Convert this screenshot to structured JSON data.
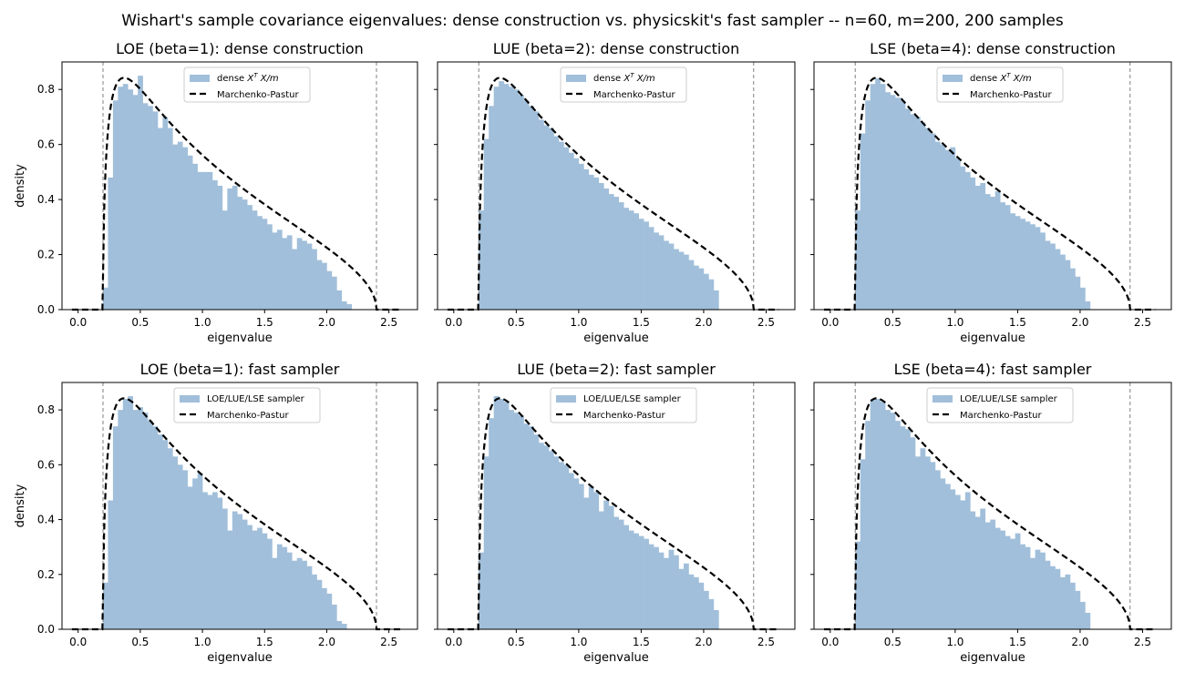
{
  "figure": {
    "suptitle": "Wishart's sample covariance eigenvalues: dense construction vs. physicskit's fast sampler -- n=60, m=200, 200 samples"
  },
  "chart_data": [
    {
      "type": "bar",
      "title": "LOE (beta=1): dense construction",
      "xlabel": "eigenvalue",
      "ylabel": "density",
      "xlim": [
        -0.13,
        2.73
      ],
      "ylim": [
        0,
        0.9
      ],
      "xticks": [
        "0.0",
        "0.5",
        "1.0",
        "1.5",
        "2.0",
        "2.5"
      ],
      "yticks": [
        "0.0",
        "0.2",
        "0.4",
        "0.6",
        "0.8"
      ],
      "legend_position": "upper-center",
      "legend": {
        "hist": "dense X^T X/m",
        "line": "Marchenko-Pastur"
      },
      "mp_edges": [
        0.2,
        2.4
      ],
      "hist": {
        "bin_start": 0.0,
        "bin_width": 0.04,
        "values": [
          0,
          0,
          0,
          0,
          0,
          0.08,
          0.48,
          0.76,
          0.81,
          0.82,
          0.8,
          0.78,
          0.85,
          0.75,
          0.74,
          0.72,
          0.66,
          0.7,
          0.66,
          0.6,
          0.61,
          0.59,
          0.56,
          0.53,
          0.5,
          0.5,
          0.5,
          0.47,
          0.45,
          0.36,
          0.44,
          0.45,
          0.41,
          0.4,
          0.38,
          0.36,
          0.34,
          0.33,
          0.31,
          0.28,
          0.29,
          0.26,
          0.27,
          0.22,
          0.26,
          0.25,
          0.24,
          0.22,
          0.18,
          0.17,
          0.14,
          0.12,
          0.07,
          0.03,
          0.02,
          0,
          0,
          0,
          0,
          0,
          0,
          0,
          0,
          0,
          0
        ]
      }
    },
    {
      "type": "bar",
      "title": "LUE (beta=2): dense construction",
      "xlabel": "eigenvalue",
      "ylabel": "",
      "xlim": [
        -0.13,
        2.73
      ],
      "ylim": [
        0,
        0.9
      ],
      "xticks": [
        "0.0",
        "0.5",
        "1.0",
        "1.5",
        "2.0",
        "2.5"
      ],
      "yticks": [
        "0.0",
        "0.2",
        "0.4",
        "0.6",
        "0.8"
      ],
      "legend_position": "upper-center",
      "legend": {
        "hist": "dense X^T X/m",
        "line": "Marchenko-Pastur"
      },
      "mp_edges": [
        0.2,
        2.4
      ],
      "hist": {
        "bin_start": 0.0,
        "bin_width": 0.04,
        "values": [
          0,
          0,
          0,
          0,
          0,
          0.36,
          0.62,
          0.74,
          0.81,
          0.83,
          0.82,
          0.81,
          0.8,
          0.78,
          0.76,
          0.74,
          0.72,
          0.69,
          0.67,
          0.66,
          0.63,
          0.61,
          0.59,
          0.57,
          0.55,
          0.53,
          0.51,
          0.49,
          0.48,
          0.46,
          0.44,
          0.42,
          0.41,
          0.39,
          0.37,
          0.36,
          0.35,
          0.33,
          0.32,
          0.3,
          0.28,
          0.27,
          0.25,
          0.24,
          0.22,
          0.21,
          0.2,
          0.18,
          0.16,
          0.15,
          0.13,
          0.11,
          0.07,
          0,
          0,
          0,
          0,
          0,
          0,
          0,
          0,
          0,
          0,
          0,
          0
        ]
      }
    },
    {
      "type": "bar",
      "title": "LSE (beta=4): dense construction",
      "xlabel": "eigenvalue",
      "ylabel": "",
      "xlim": [
        -0.13,
        2.73
      ],
      "ylim": [
        0,
        0.9
      ],
      "xticks": [
        "0.0",
        "0.5",
        "1.0",
        "1.5",
        "2.0",
        "2.5"
      ],
      "yticks": [
        "0.0",
        "0.2",
        "0.4",
        "0.6",
        "0.8"
      ],
      "legend_position": "upper-center",
      "legend": {
        "hist": "dense X^T X/m",
        "line": "Marchenko-Pastur"
      },
      "mp_edges": [
        0.2,
        2.4
      ],
      "hist": {
        "bin_start": 0.0,
        "bin_width": 0.04,
        "values": [
          0,
          0,
          0,
          0,
          0,
          0.36,
          0.64,
          0.76,
          0.82,
          0.84,
          0.82,
          0.79,
          0.78,
          0.77,
          0.76,
          0.73,
          0.71,
          0.7,
          0.68,
          0.66,
          0.64,
          0.61,
          0.6,
          0.58,
          0.59,
          0.55,
          0.52,
          0.5,
          0.48,
          0.45,
          0.46,
          0.42,
          0.41,
          0.43,
          0.39,
          0.38,
          0.35,
          0.34,
          0.33,
          0.32,
          0.31,
          0.3,
          0.28,
          0.25,
          0.24,
          0.22,
          0.2,
          0.18,
          0.15,
          0.12,
          0.08,
          0.03,
          0,
          0,
          0,
          0,
          0,
          0,
          0,
          0,
          0,
          0,
          0,
          0,
          0
        ]
      }
    },
    {
      "type": "bar",
      "title": "LOE (beta=1): fast sampler",
      "xlabel": "eigenvalue",
      "ylabel": "density",
      "xlim": [
        -0.13,
        2.73
      ],
      "ylim": [
        0,
        0.9
      ],
      "xticks": [
        "0.0",
        "0.5",
        "1.0",
        "1.5",
        "2.0",
        "2.5"
      ],
      "yticks": [
        "0.0",
        "0.2",
        "0.4",
        "0.6",
        "0.8"
      ],
      "legend_position": "upper-center",
      "legend": {
        "hist": "LOE/LUE/LSE sampler",
        "line": "Marchenko-Pastur"
      },
      "mp_edges": [
        0.2,
        2.4
      ],
      "hist": {
        "bin_start": 0.0,
        "bin_width": 0.04,
        "values": [
          0,
          0,
          0,
          0,
          0,
          0.17,
          0.47,
          0.74,
          0.8,
          0.84,
          0.85,
          0.8,
          0.81,
          0.79,
          0.76,
          0.74,
          0.71,
          0.69,
          0.66,
          0.63,
          0.6,
          0.58,
          0.52,
          0.55,
          0.57,
          0.5,
          0.49,
          0.5,
          0.48,
          0.44,
          0.36,
          0.43,
          0.42,
          0.4,
          0.38,
          0.36,
          0.37,
          0.35,
          0.33,
          0.26,
          0.31,
          0.3,
          0.28,
          0.25,
          0.26,
          0.25,
          0.23,
          0.2,
          0.18,
          0.15,
          0.13,
          0.09,
          0.03,
          0.02,
          0,
          0,
          0,
          0,
          0,
          0,
          0,
          0,
          0,
          0,
          0
        ]
      }
    },
    {
      "type": "bar",
      "title": "LUE (beta=2): fast sampler",
      "xlabel": "eigenvalue",
      "ylabel": "",
      "xlim": [
        -0.13,
        2.73
      ],
      "ylim": [
        0,
        0.9
      ],
      "xticks": [
        "0.0",
        "0.5",
        "1.0",
        "1.5",
        "2.0",
        "2.5"
      ],
      "yticks": [
        "0.0",
        "0.2",
        "0.4",
        "0.6",
        "0.8"
      ],
      "legend_position": "upper-center",
      "legend": {
        "hist": "LOE/LUE/LSE sampler",
        "line": "Marchenko-Pastur"
      },
      "mp_edges": [
        0.2,
        2.4
      ],
      "hist": {
        "bin_start": 0.0,
        "bin_width": 0.04,
        "values": [
          0,
          0,
          0,
          0,
          0,
          0.28,
          0.63,
          0.77,
          0.85,
          0.84,
          0.83,
          0.8,
          0.79,
          0.78,
          0.75,
          0.74,
          0.71,
          0.68,
          0.67,
          0.65,
          0.63,
          0.61,
          0.6,
          0.57,
          0.55,
          0.53,
          0.48,
          0.52,
          0.5,
          0.43,
          0.47,
          0.45,
          0.41,
          0.4,
          0.38,
          0.36,
          0.35,
          0.34,
          0.33,
          0.31,
          0.3,
          0.28,
          0.26,
          0.29,
          0.27,
          0.22,
          0.24,
          0.2,
          0.19,
          0.17,
          0.14,
          0.11,
          0.07,
          0,
          0,
          0,
          0,
          0,
          0,
          0,
          0,
          0,
          0,
          0,
          0
        ]
      }
    },
    {
      "type": "bar",
      "title": "LSE (beta=4): fast sampler",
      "xlabel": "eigenvalue",
      "ylabel": "",
      "xlim": [
        -0.13,
        2.73
      ],
      "ylim": [
        0,
        0.9
      ],
      "xticks": [
        "0.0",
        "0.5",
        "1.0",
        "1.5",
        "2.0",
        "2.5"
      ],
      "yticks": [
        "0.0",
        "0.2",
        "0.4",
        "0.6",
        "0.8"
      ],
      "legend_position": "upper-center",
      "legend": {
        "hist": "LOE/LUE/LSE sampler",
        "line": "Marchenko-Pastur"
      },
      "mp_edges": [
        0.2,
        2.4
      ],
      "hist": {
        "bin_start": 0.0,
        "bin_width": 0.04,
        "values": [
          0,
          0,
          0,
          0,
          0,
          0.32,
          0.62,
          0.76,
          0.84,
          0.84,
          0.83,
          0.8,
          0.79,
          0.76,
          0.74,
          0.73,
          0.7,
          0.63,
          0.66,
          0.63,
          0.61,
          0.58,
          0.55,
          0.53,
          0.51,
          0.49,
          0.47,
          0.5,
          0.43,
          0.41,
          0.44,
          0.39,
          0.4,
          0.37,
          0.36,
          0.34,
          0.33,
          0.35,
          0.31,
          0.3,
          0.26,
          0.29,
          0.28,
          0.25,
          0.23,
          0.22,
          0.19,
          0.2,
          0.17,
          0.14,
          0.1,
          0.06,
          0,
          0,
          0,
          0,
          0,
          0,
          0,
          0,
          0,
          0,
          0,
          0,
          0
        ]
      }
    }
  ]
}
